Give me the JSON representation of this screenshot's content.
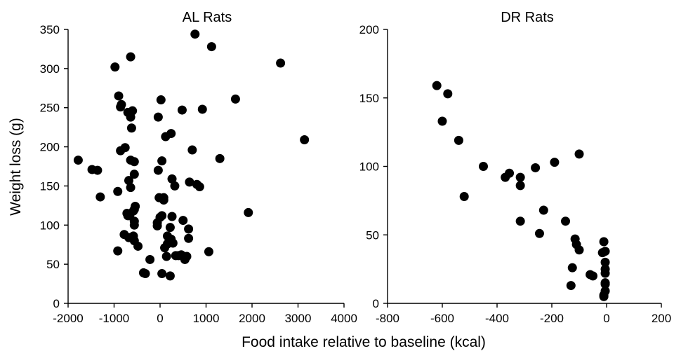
{
  "figure": {
    "xlabel": "Food intake relative to baseline (kcal)",
    "ylabel": "Weight loss (g)"
  },
  "chart_data": [
    {
      "type": "scatter",
      "title": "AL  Rats",
      "xlabel": "Food intake relative to baseline (kcal)",
      "ylabel": "Weight loss (g)",
      "xlim": [
        -2000,
        4000
      ],
      "ylim": [
        0,
        350
      ],
      "xticks": [
        -2000,
        -1000,
        0,
        1000,
        2000,
        3000,
        4000
      ],
      "yticks": [
        0,
        50,
        100,
        150,
        200,
        250,
        300,
        350
      ],
      "grid": false,
      "legend": "none",
      "marker_color": "#000000",
      "series": [
        {
          "x": [
            -1780,
            -1480,
            -1360,
            -1300,
            -920,
            -860,
            -760,
            -680,
            -920,
            -780,
            -680,
            -560,
            -580,
            -660,
            -980,
            -640,
            -620,
            -640,
            -560,
            -560,
            -540,
            -900,
            -840,
            -860,
            -700,
            -640,
            -600,
            -700,
            -640,
            -560,
            -560,
            -480,
            -720,
            -580,
            -560,
            -360,
            -320,
            -220,
            220,
            -60,
            -60,
            40,
            0,
            -20,
            -40,
            -40,
            20,
            40,
            120,
            80,
            80,
            100,
            160,
            240,
            280,
            240,
            260,
            320,
            160,
            220,
            260,
            140,
            40,
            340,
            400,
            460,
            500,
            540,
            580,
            620,
            620,
            480,
            640,
            700,
            760,
            800,
            860,
            1060,
            920,
            1120,
            1300,
            1640,
            1920,
            2620,
            3140
          ],
          "y": [
            183,
            171,
            170,
            136,
            143,
            195,
            199,
            157,
            67,
            88,
            84,
            80,
            86,
            112,
            302,
            315,
            224,
            183,
            181,
            165,
            124,
            265,
            254,
            251,
            244,
            238,
            246,
            112,
            148,
            120,
            105,
            73,
            115,
            118,
            100,
            39,
            38,
            56,
            35,
            99,
            103,
            112,
            110,
            135,
            170,
            238,
            260,
            182,
            213,
            132,
            135,
            71,
            86,
            82,
            77,
            217,
            159,
            150,
            76,
            97,
            111,
            60,
            38,
            61,
            61,
            62,
            106,
            56,
            60,
            95,
            83,
            247,
            155,
            196,
            344,
            152,
            149,
            66,
            248,
            328,
            185,
            261,
            116,
            307,
            209
          ]
        }
      ]
    },
    {
      "type": "scatter",
      "title": "DR  Rats",
      "xlabel": "Food intake relative to baseline (kcal)",
      "ylabel": "",
      "xlim": [
        -800,
        200
      ],
      "ylim": [
        0,
        200
      ],
      "xticks": [
        -800,
        -600,
        -400,
        -200,
        0,
        200
      ],
      "yticks": [
        0,
        50,
        100,
        150,
        200
      ],
      "grid": false,
      "legend": "none",
      "marker_color": "#000000",
      "series": [
        {
          "x": [
            -620,
            -580,
            -600,
            -540,
            -520,
            -450,
            -370,
            -355,
            -315,
            -315,
            -315,
            -260,
            -245,
            -230,
            -190,
            -150,
            -130,
            -125,
            -115,
            -110,
            -100,
            -100,
            -60,
            -50,
            -15,
            -10,
            -10,
            -10,
            -5,
            -5,
            -5,
            -5,
            -5,
            -5,
            -5
          ],
          "y": [
            159,
            153,
            133,
            119,
            78,
            100,
            92,
            95,
            92,
            86,
            60,
            99,
            51,
            68,
            103,
            60,
            13,
            26,
            47,
            43,
            109,
            39,
            21,
            20,
            37,
            6,
            5,
            45,
            38,
            30,
            25,
            22,
            15,
            14,
            9
          ]
        }
      ]
    }
  ]
}
